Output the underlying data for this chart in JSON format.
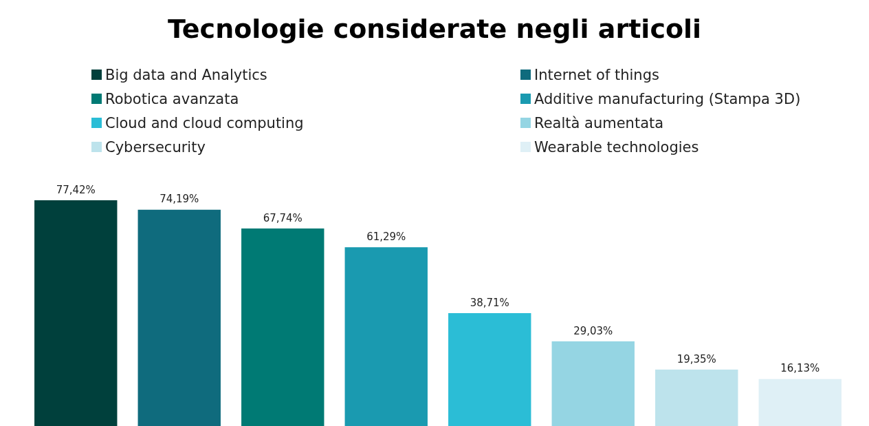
{
  "chart_data": {
    "type": "bar",
    "title": "Tecnologie considerate negli articoli",
    "categories": [
      null,
      null,
      null,
      null,
      null,
      null,
      null,
      null
    ],
    "series": [
      {
        "name": "Big data and Analytics",
        "color": "#00403c",
        "values": [
          77.42,
          null,
          null,
          null,
          null,
          null,
          null,
          null
        ],
        "value_labels": [
          "77,42%",
          null,
          null,
          null,
          null,
          null,
          null,
          null
        ]
      },
      {
        "name": "Internet of things",
        "color": "#0f6b7d",
        "values": [
          null,
          74.19,
          null,
          null,
          null,
          null,
          null,
          null
        ],
        "value_labels": [
          null,
          "74,19%",
          null,
          null,
          null,
          null,
          null,
          null
        ]
      },
      {
        "name": "Robotica avanzata",
        "color": "#007a74",
        "values": [
          null,
          null,
          67.74,
          null,
          null,
          null,
          null,
          null
        ],
        "value_labels": [
          null,
          null,
          "67,74%",
          null,
          null,
          null,
          null,
          null
        ]
      },
      {
        "name": "Additive manufacturing (Stampa 3D)",
        "color": "#1a9ab0",
        "values": [
          null,
          null,
          null,
          61.29,
          null,
          null,
          null,
          null
        ],
        "value_labels": [
          null,
          null,
          null,
          "61,29%",
          null,
          null,
          null,
          null
        ]
      },
      {
        "name": "Cloud and cloud computing",
        "color": "#2bbdd6",
        "values": [
          null,
          null,
          null,
          null,
          38.71,
          null,
          null,
          null
        ],
        "value_labels": [
          null,
          null,
          null,
          null,
          "38,71%",
          null,
          null,
          null
        ]
      },
      {
        "name": "Realtà aumentata",
        "color": "#95d5e3",
        "values": [
          null,
          null,
          null,
          null,
          null,
          29.03,
          null,
          null
        ],
        "value_labels": [
          null,
          null,
          null,
          null,
          null,
          "29,03%",
          null,
          null
        ]
      },
      {
        "name": "Cybersecurity",
        "color": "#bde3ec",
        "values": [
          null,
          null,
          null,
          null,
          null,
          null,
          19.35,
          null
        ],
        "value_labels": [
          null,
          null,
          null,
          null,
          null,
          null,
          "19,35%",
          null
        ]
      },
      {
        "name": "Wearable technologies",
        "color": "#dff0f6",
        "values": [
          null,
          null,
          null,
          null,
          null,
          null,
          null,
          16.13
        ],
        "value_labels": [
          null,
          null,
          null,
          null,
          null,
          null,
          null,
          "16,13%"
        ]
      }
    ],
    "legend": "top",
    "stacked": true,
    "tick_labels": false,
    "grid": false
  }
}
